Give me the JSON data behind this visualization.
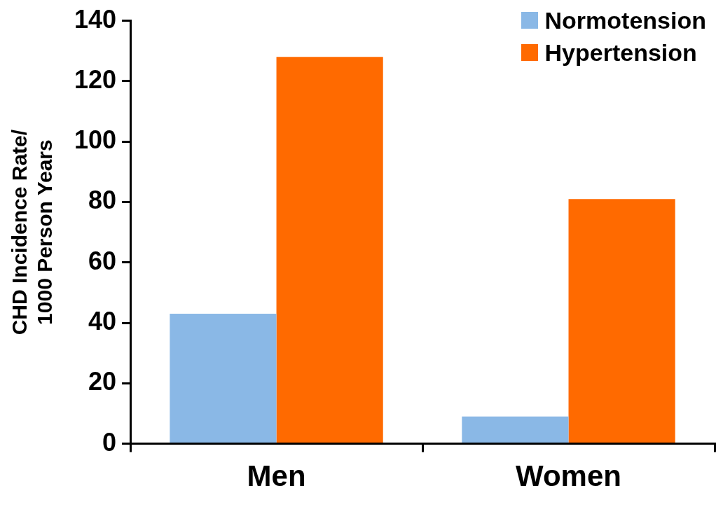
{
  "chart_data": {
    "type": "bar",
    "ylabel": "CHD Incidence Rate/\n1000 Person Years",
    "categories": [
      "Men",
      "Women"
    ],
    "series": [
      {
        "name": "Normotension",
        "color": "#8ab8e6",
        "values": [
          43,
          9
        ]
      },
      {
        "name": "Hypertension",
        "color": "#ff6a00",
        "values": [
          128,
          81
        ]
      }
    ],
    "ylim": [
      0,
      140
    ],
    "yticks": [
      0,
      20,
      40,
      60,
      80,
      100,
      120,
      140
    ],
    "grid": false,
    "legend": "top right"
  }
}
